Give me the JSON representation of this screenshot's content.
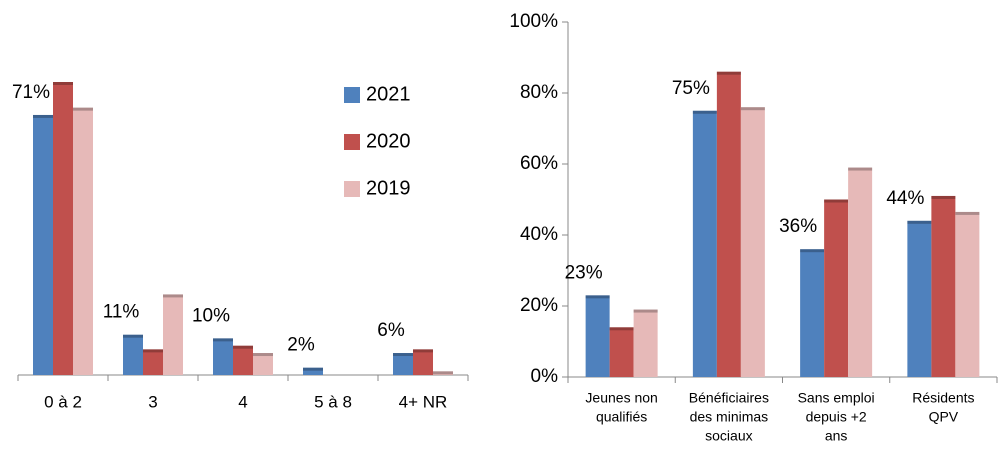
{
  "chart_data": [
    {
      "type": "bar",
      "categories": [
        "0 à 2",
        "3",
        "4",
        "5 à 8",
        "4+ NR"
      ],
      "series": [
        {
          "name": "2021",
          "color": "#4f81bd",
          "values": [
            71,
            11,
            10,
            2,
            6
          ],
          "value_labels": [
            "71%",
            "11%",
            "10%",
            "2%",
            "6%"
          ]
        },
        {
          "name": "2020",
          "color": "#c0504d",
          "values": [
            80,
            7,
            8,
            0,
            7
          ]
        },
        {
          "name": "2019",
          "color": "#e6b9b8",
          "values": [
            73,
            22,
            6,
            0,
            1
          ]
        }
      ],
      "legend": "right"
    },
    {
      "type": "bar",
      "categories": [
        [
          "Jeunes non",
          "qualifiés"
        ],
        [
          "Bénéficiaires",
          "des minimas",
          "sociaux"
        ],
        [
          "Sans emploi",
          "depuis +2",
          "ans"
        ],
        [
          "Résidents",
          "QPV"
        ]
      ],
      "series": [
        {
          "color": "#4f81bd",
          "values": [
            23,
            75,
            36,
            44
          ],
          "value_labels": [
            "23%",
            "75%",
            "36%",
            "44%"
          ]
        },
        {
          "color": "#c0504d",
          "values": [
            14,
            86,
            50,
            51
          ]
        },
        {
          "color": "#e6b9b8",
          "values": [
            19,
            76,
            59,
            46.5
          ]
        }
      ],
      "ylim": [
        0,
        100
      ],
      "yticks": [
        {
          "value": 0,
          "label": "0%"
        },
        {
          "value": 20,
          "label": "20%"
        },
        {
          "value": 40,
          "label": "40%"
        },
        {
          "value": 60,
          "label": "60%"
        },
        {
          "value": 80,
          "label": "80%"
        },
        {
          "value": 100,
          "label": "100%"
        }
      ]
    }
  ]
}
